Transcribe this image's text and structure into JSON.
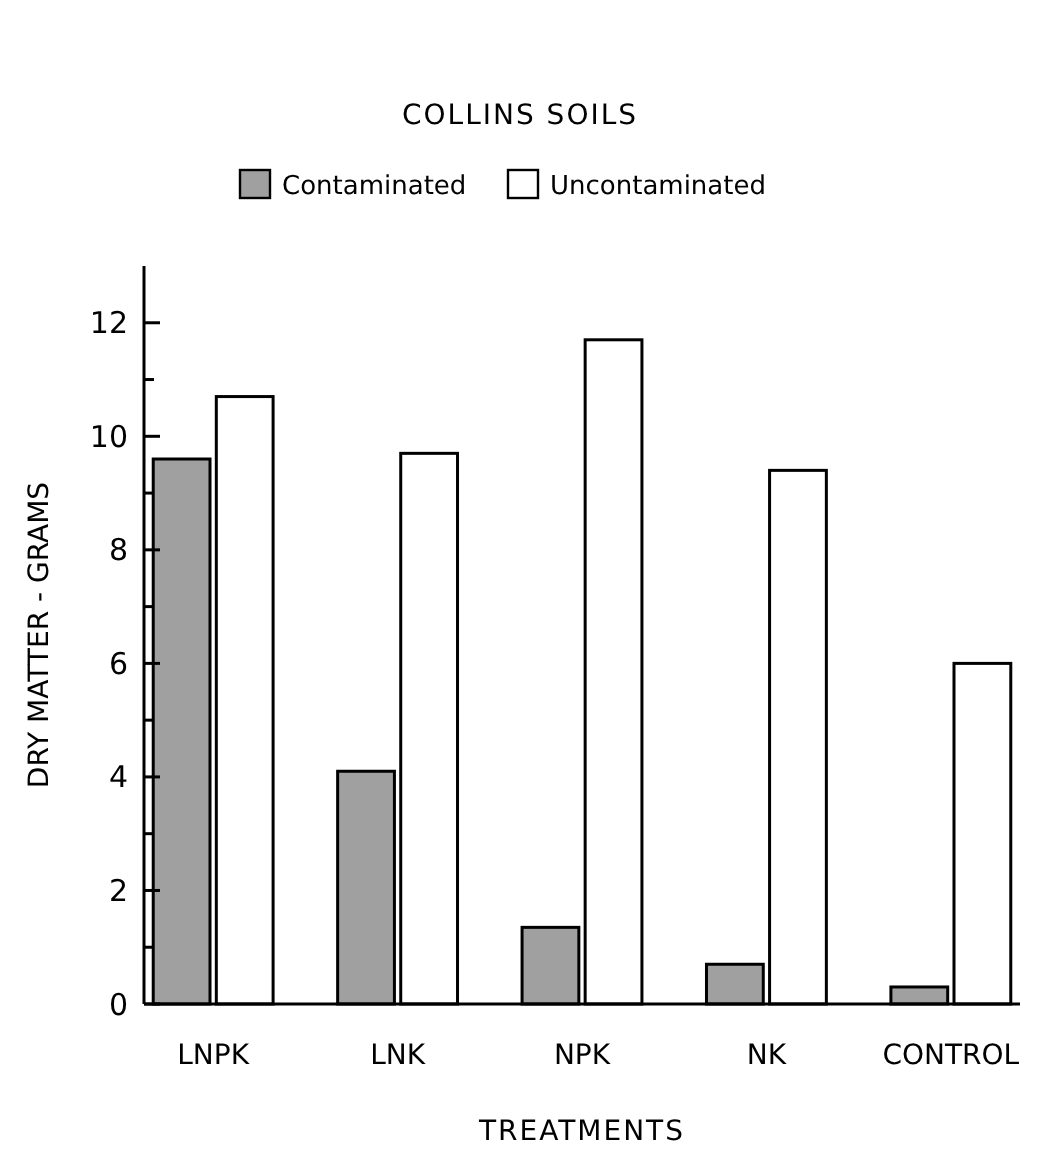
{
  "chart_data": {
    "type": "bar",
    "title": "COLLINS SOILS",
    "xlabel": "TREATMENTS",
    "ylabel": "DRY MATTER - GRAMS",
    "categories": [
      "LNPK",
      "LNK",
      "NPK",
      "NK",
      "CONTROL"
    ],
    "series": [
      {
        "name": "Contaminated",
        "color": "#a0a0a0",
        "values": [
          9.6,
          4.1,
          1.35,
          0.7,
          0.3
        ]
      },
      {
        "name": "Uncontaminated",
        "color": "#ffffff",
        "values": [
          10.7,
          9.7,
          11.7,
          9.4,
          6.0
        ]
      }
    ],
    "ylim": [
      0,
      13
    ],
    "yticks": [
      0,
      {
        "value": 1,
        "label": null
      },
      2,
      {
        "value": 3,
        "label": null
      },
      4,
      {
        "value": 5,
        "label": null
      },
      6,
      {
        "value": 7,
        "label": null
      },
      8,
      {
        "value": 9,
        "label": null
      },
      10,
      {
        "value": 11,
        "label": null
      },
      12
    ],
    "legend": "top",
    "grid": false
  }
}
